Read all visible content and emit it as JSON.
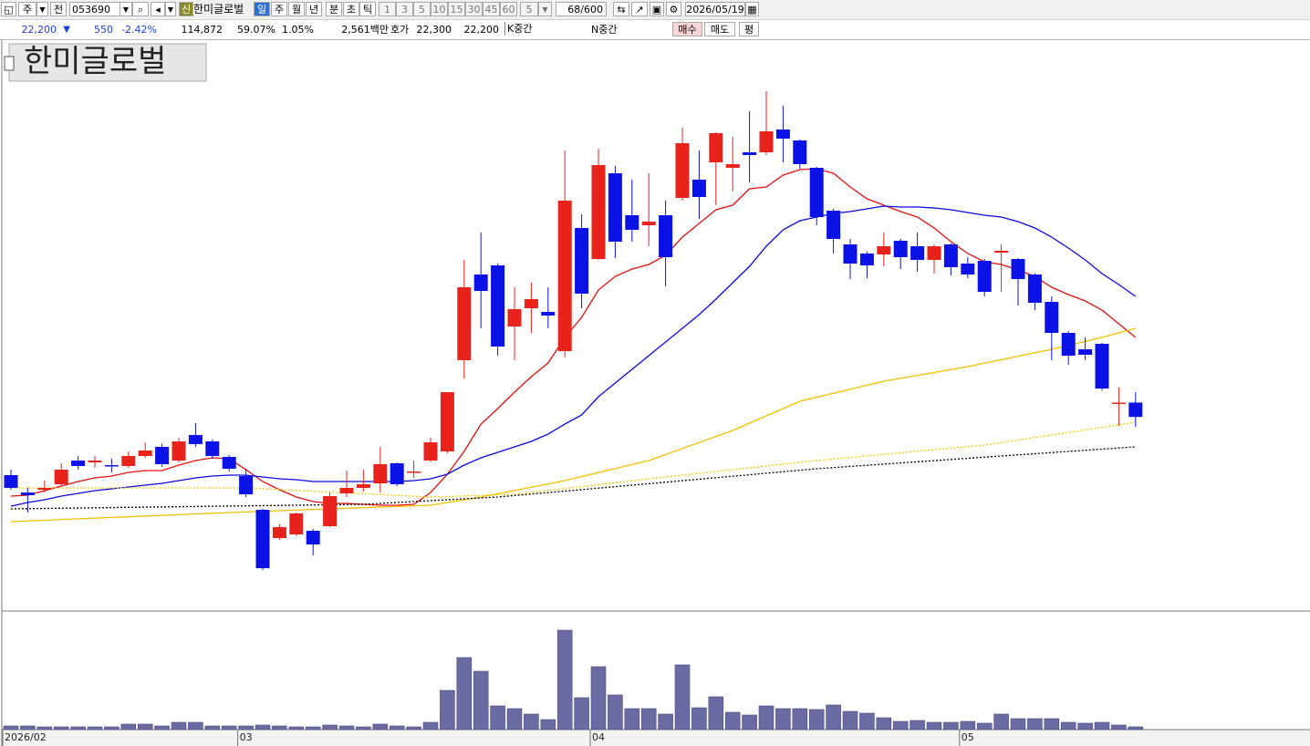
{
  "toolbar": {
    "market": "주",
    "prev": "전",
    "code": "053690",
    "badge": "신",
    "name": "한미글로벌",
    "periods": [
      "일",
      "주",
      "월",
      "년",
      "분",
      "초",
      "틱"
    ],
    "intervals": [
      "1",
      "3",
      "5",
      "10",
      "15",
      "30",
      "45",
      "60"
    ],
    "interval_value": "5",
    "count": "68/600",
    "date": "2026/05/19"
  },
  "quote": {
    "price": "22,200",
    "direction": "▼",
    "change": "550",
    "change_rate": "-2.42%",
    "volume": "114,872",
    "turnover": "59.07%",
    "ratio": "1.05%",
    "amount": "2,561백만",
    "ask_label": "호가",
    "ask": "22,300",
    "bid": "22,200",
    "k_mid": "K중간",
    "n_mid": "N중간",
    "buy": "매수",
    "sell": "매도",
    "avg": "평"
  },
  "chart_data": [
    {
      "type": "candlestick",
      "title": "한미글로벌",
      "categories": [
        "2026/02",
        null,
        null,
        null,
        null,
        null,
        null,
        null,
        null,
        null,
        null,
        null,
        null,
        null,
        "03",
        null,
        null,
        null,
        null,
        null,
        null,
        null,
        null,
        null,
        null,
        null,
        null,
        null,
        null,
        null,
        null,
        null,
        null,
        null,
        null,
        "04",
        null,
        null,
        null,
        null,
        null,
        null,
        null,
        null,
        null,
        null,
        null,
        null,
        null,
        null,
        null,
        null,
        null,
        null,
        null,
        null,
        null,
        "05",
        null,
        null,
        null,
        null,
        null,
        null,
        null,
        null,
        null,
        null
      ],
      "open": [
        19965,
        19300,
        19405,
        19615,
        20525,
        20455,
        20350,
        20315,
        20700,
        21050,
        20525,
        21505,
        21260,
        20665,
        19930,
        18635,
        17550,
        17690,
        17830,
        18005,
        19265,
        19475,
        19650,
        20420,
        20070,
        20525,
        20875,
        24375,
        27665,
        28015,
        25670,
        26370,
        26230,
        24725,
        29450,
        28260,
        31550,
        29940,
        29555,
        29940,
        30605,
        31305,
        31970,
        31760,
        32355,
        32355,
        33230,
        32810,
        31760,
        30115,
        28820,
        28470,
        28435,
        28960,
        28750,
        28225,
        28820,
        28085,
        28190,
        28505,
        28260,
        27665,
        26615,
        25425,
        24795,
        25005,
        22700,
        22750
      ],
      "high": [
        20175,
        19475,
        19755,
        20420,
        20700,
        20700,
        20595,
        20875,
        21225,
        21155,
        21400,
        21960,
        21330,
        20735,
        20210,
        18670,
        18075,
        18530,
        17900,
        19300,
        20140,
        20175,
        21050,
        20455,
        20525,
        21400,
        23150,
        28225,
        29275,
        28085,
        27175,
        27350,
        27175,
        32425,
        29975,
        32495,
        31830,
        31305,
        31550,
        30500,
        33300,
        32425,
        33125,
        32950,
        33930,
        34700,
        34140,
        32845,
        31795,
        30185,
        29030,
        28540,
        29275,
        29030,
        29275,
        28820,
        28855,
        28330,
        28260,
        28820,
        28295,
        27700,
        26825,
        25495,
        25250,
        25040,
        23325,
        23150
      ],
      "low": [
        19405,
        18530,
        19300,
        19545,
        20175,
        20245,
        20070,
        20245,
        20630,
        20280,
        20455,
        21050,
        20595,
        20105,
        19125,
        16325,
        17480,
        17620,
        16885,
        17970,
        19125,
        19335,
        19300,
        19545,
        19860,
        20455,
        20805,
        23675,
        25600,
        24550,
        24375,
        25425,
        25600,
        24480,
        26370,
        28225,
        28295,
        28925,
        28750,
        27210,
        30500,
        29800,
        30325,
        30850,
        31200,
        32250,
        31970,
        31725,
        29555,
        28470,
        27490,
        27525,
        27980,
        27875,
        27770,
        27700,
        27630,
        27525,
        26825,
        27000,
        26475,
        26300,
        24375,
        24200,
        24375,
        23220,
        21855,
        21820
      ],
      "close": [
        19475,
        19195,
        19475,
        20175,
        20315,
        20525,
        20315,
        20700,
        20910,
        20385,
        21260,
        21155,
        20700,
        20210,
        19230,
        16395,
        17970,
        18495,
        17305,
        19160,
        19475,
        19615,
        20385,
        19615,
        20105,
        21225,
        23150,
        27175,
        27035,
        24900,
        26335,
        26720,
        26090,
        30500,
        26930,
        31865,
        28925,
        29380,
        29695,
        28330,
        32705,
        30640,
        33090,
        31900,
        32250,
        33160,
        32880,
        31900,
        29870,
        29030,
        28085,
        28015,
        28750,
        28330,
        28225,
        28750,
        27945,
        27665,
        27000,
        28575,
        27490,
        26580,
        25425,
        24550,
        24585,
        23290,
        22750,
        22200
      ],
      "up_color": "#e8231b",
      "down_color": "#0a12e6",
      "ylim": [
        14820,
        36590
      ],
      "series": [
        {
          "color": "#e01010",
          "values": [
            19160,
            19195,
            19370,
            19545,
            19720,
            19860,
            19930,
            20070,
            20140,
            20140,
            20350,
            20525,
            20630,
            20595,
            20175,
            19720,
            19405,
            19125,
            18950,
            18880,
            18880,
            18845,
            18810,
            18810,
            18845,
            19300,
            20000,
            20875,
            21925,
            22520,
            23150,
            23745,
            24270,
            25250,
            26020,
            27070,
            27595,
            27875,
            28050,
            28400,
            29100,
            29625,
            30150,
            30325,
            30955,
            31025,
            31480,
            31690,
            31725,
            31550,
            31025,
            30570,
            30325,
            30080,
            29870,
            29450,
            28925,
            28470,
            28155,
            28050,
            27840,
            27595,
            27175,
            26895,
            26650,
            26300,
            25775,
            25250
          ]
        },
        {
          "color": "#0a0ae0",
          "values": [
            18775,
            18915,
            19020,
            19160,
            19265,
            19370,
            19440,
            19510,
            19580,
            19650,
            19755,
            19860,
            19930,
            19965,
            19965,
            19895,
            19825,
            19790,
            19720,
            19720,
            19720,
            19720,
            19720,
            19720,
            19755,
            19825,
            20000,
            20350,
            20630,
            20840,
            21050,
            21260,
            21540,
            21925,
            22275,
            22975,
            23500,
            24025,
            24550,
            25075,
            25600,
            26125,
            26720,
            27350,
            27980,
            28750,
            29380,
            29730,
            29870,
            30010,
            30080,
            30185,
            30290,
            30255,
            30255,
            30220,
            30150,
            30045,
            29940,
            29870,
            29695,
            29450,
            29100,
            28680,
            28225,
            27700,
            27280,
            26825
          ]
        },
        {
          "color": "#f0c000",
          "x": [
            0,
            13,
            25,
            28,
            33,
            38,
            43,
            47,
            52,
            57,
            62,
            65,
            67
          ],
          "values": [
            18180,
            18530,
            18810,
            19125,
            19755,
            20525,
            21680,
            22800,
            23570,
            24130,
            24795,
            25250,
            25600
          ]
        },
        {
          "color": "#f0c800",
          "dash": "2,2",
          "x": [
            0,
            14,
            25,
            30,
            38,
            48,
            58,
            67
          ],
          "values": [
            19475,
            19475,
            19125,
            19230,
            19825,
            20525,
            21120,
            21995
          ]
        },
        {
          "color": "#000000",
          "dash": "2,2",
          "x": [
            0,
            21,
            29,
            37,
            48,
            59,
            67
          ],
          "values": [
            18670,
            18845,
            19125,
            19580,
            20210,
            20700,
            21050
          ]
        }
      ]
    },
    {
      "type": "bar",
      "color": "#6b6ba3",
      "ylim": [
        0,
        4940000
      ],
      "values": [
        152000,
        152000,
        114000,
        114000,
        114000,
        114000,
        114000,
        228000,
        228000,
        152000,
        304000,
        304000,
        152000,
        152000,
        152000,
        190000,
        152000,
        114000,
        114000,
        190000,
        152000,
        114000,
        228000,
        152000,
        114000,
        304000,
        1634000,
        3002000,
        2432000,
        988000,
        874000,
        646000,
        418000,
        4142000,
        1330000,
        2622000,
        1444000,
        874000,
        874000,
        646000,
        2698000,
        912000,
        1368000,
        722000,
        608000,
        988000,
        874000,
        874000,
        836000,
        1026000,
        760000,
        684000,
        494000,
        342000,
        380000,
        304000,
        304000,
        342000,
        266000,
        646000,
        456000,
        456000,
        456000,
        304000,
        266000,
        304000,
        190000,
        114872
      ]
    }
  ]
}
